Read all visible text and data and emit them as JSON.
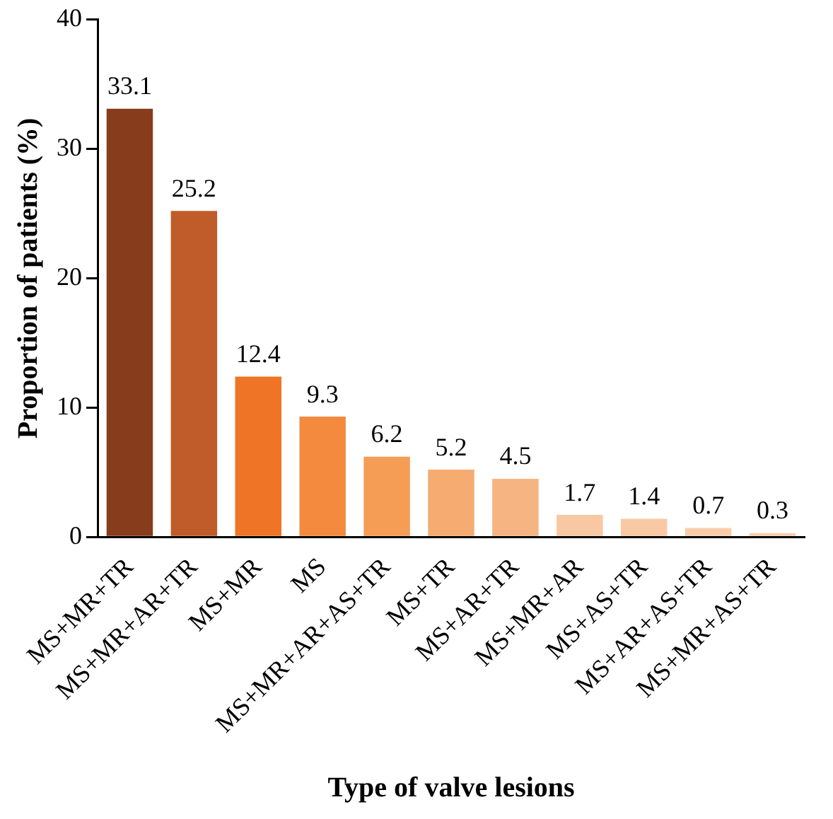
{
  "chart_data": {
    "type": "bar",
    "xlabel": "Type of valve lesions",
    "ylabel": "Proportion of patients (%)",
    "categories": [
      "MS+MR+TR",
      "MS+MR+AR+TR",
      "MS+MR",
      "MS",
      "MS+MR+AR+AS+TR",
      "MS+TR",
      "MS+AR+TR",
      "MS+MR+AR",
      "MS+AS+TR",
      "MS+AR+AS+TR",
      "MS+MR+AS+TR"
    ],
    "values": [
      33.1,
      25.2,
      12.4,
      9.3,
      6.2,
      5.2,
      4.5,
      1.7,
      1.4,
      0.7,
      0.3
    ],
    "colors": [
      "#873c1c",
      "#c05c2a",
      "#f07426",
      "#f38a3e",
      "#f59c55",
      "#f6ab70",
      "#f7b483",
      "#f8c8a2",
      "#f8c9a4",
      "#f9cdaa",
      "#f9ceac"
    ],
    "ylim": [
      0,
      40
    ],
    "yticks": [
      0,
      10,
      20,
      30,
      40
    ],
    "grid": false,
    "legend": false,
    "data_labels": true
  }
}
